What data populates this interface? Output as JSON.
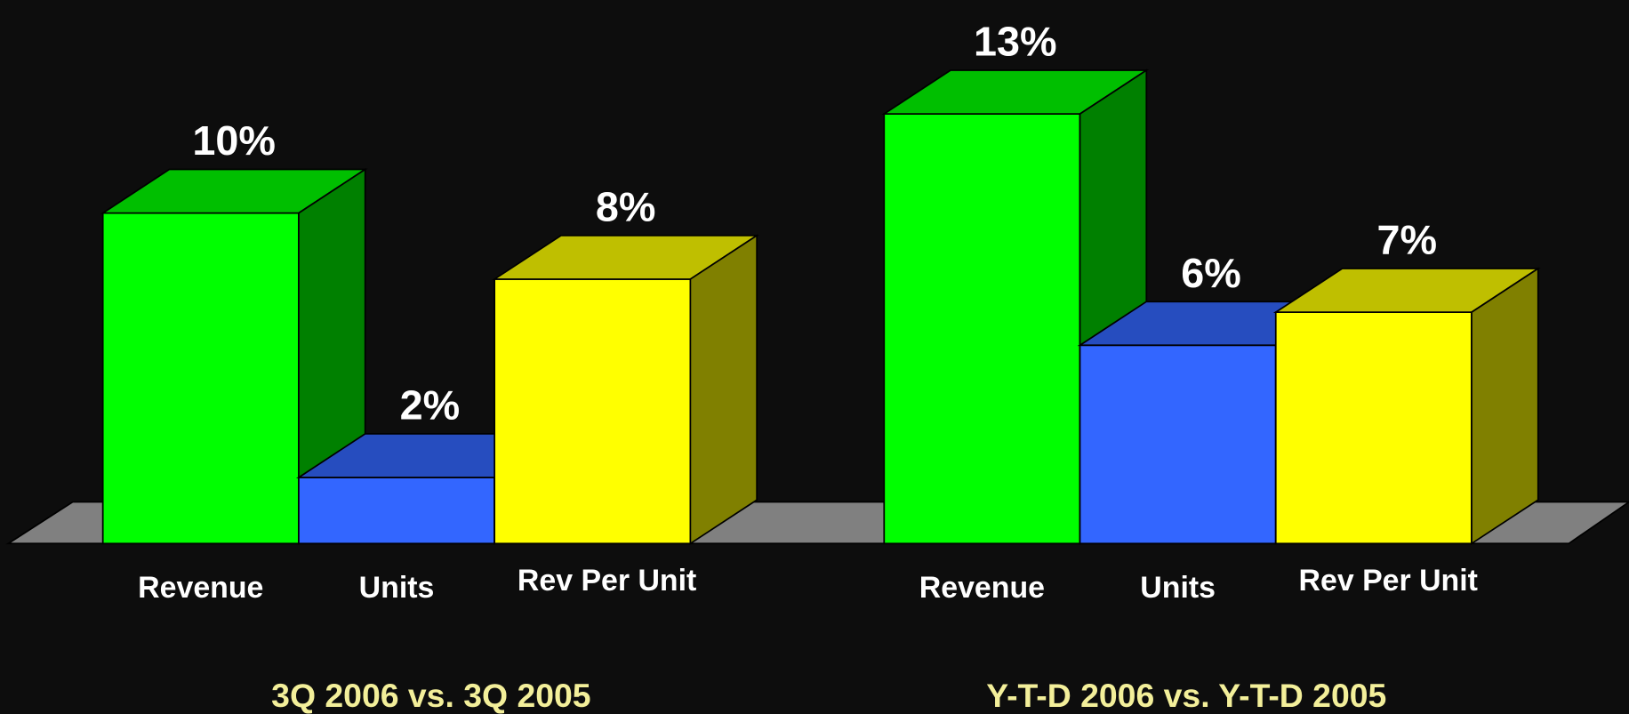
{
  "chart_data": [
    {
      "type": "bar",
      "title": "3Q 2006 vs. 3Q 2005",
      "categories": [
        "Revenue",
        "Units",
        "Rev Per Unit"
      ],
      "values": [
        10,
        2,
        8
      ],
      "value_labels": [
        "10%",
        "2%",
        "8%"
      ],
      "colors": [
        "#00ff00",
        "#3366ff",
        "#ffff00"
      ]
    },
    {
      "type": "bar",
      "title": "Y-T-D 2006 vs. Y-T-D 2005",
      "categories": [
        "Revenue",
        "Units",
        "Rev Per Unit"
      ],
      "values": [
        13,
        6,
        7
      ],
      "value_labels": [
        "13%",
        "6%",
        "7%"
      ],
      "colors": [
        "#00ff00",
        "#3366ff",
        "#ffff00"
      ]
    }
  ]
}
